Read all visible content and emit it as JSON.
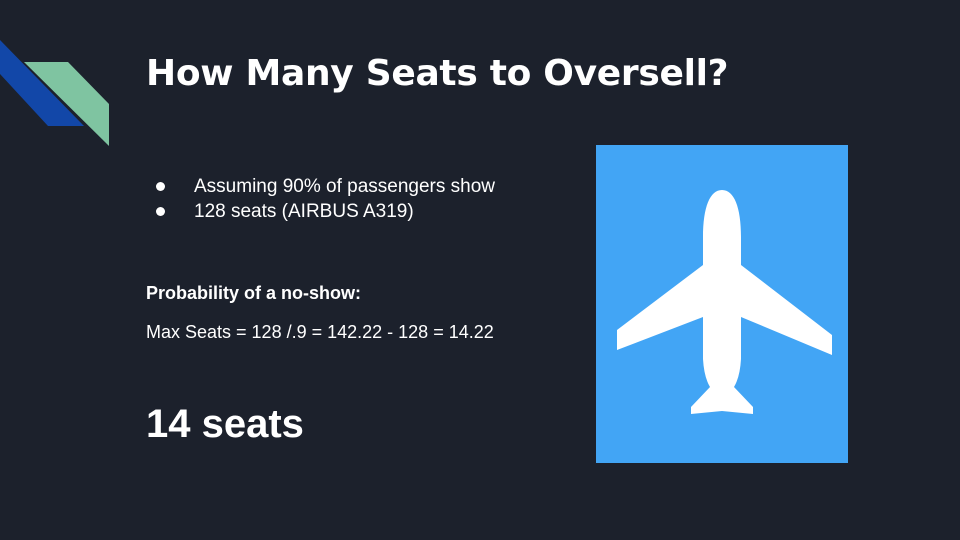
{
  "slide": {
    "title": "How Many Seats to Oversell?",
    "bullets": [
      "Assuming 90% of passengers show",
      "128 seats (AIRBUS A319)"
    ],
    "subheading": "Probability of a no-show:",
    "formula": "Max Seats = 128 /.9 = 142.22 - 128 = 14.22",
    "result": "14 seats"
  },
  "decoration": {
    "corner_colors": [
      "#1247a8",
      "#7fc4a1"
    ]
  },
  "image": {
    "icon": "airplane-icon",
    "background_color": "#42a5f5",
    "icon_color": "#ffffff"
  }
}
